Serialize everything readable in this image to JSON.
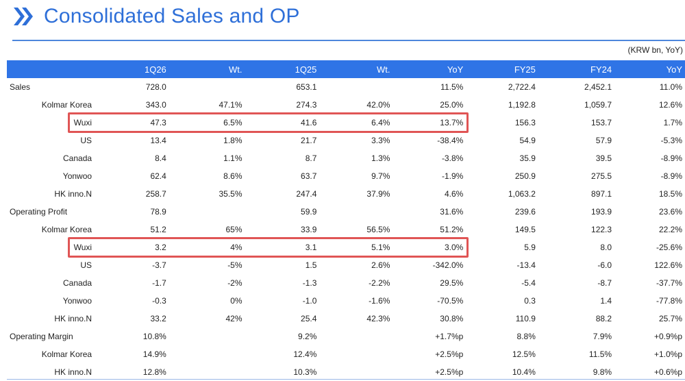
{
  "title": "Consolidated Sales and OP",
  "unit_note": "(KRW bn, YoY)",
  "columns": [
    "",
    "1Q26",
    "Wt.",
    "1Q25",
    "Wt.",
    "YoY",
    "FY25",
    "FY24",
    "YoY"
  ],
  "colors": {
    "accent": "#2e6fd8",
    "header_bg": "#2f74e6",
    "section_bg": "#dde4ee",
    "highlight": "#e05555"
  },
  "rows": [
    {
      "label": "Sales",
      "type": "section",
      "cells": [
        "728.0",
        "",
        "653.1",
        "",
        "11.5%",
        "2,722.4",
        "2,452.1",
        "11.0%"
      ]
    },
    {
      "label": "Kolmar Korea",
      "type": "sub",
      "cells": [
        "343.0",
        "47.1%",
        "274.3",
        "42.0%",
        "25.0%",
        "1,192.8",
        "1,059.7",
        "12.6%"
      ]
    },
    {
      "label": "Wuxi",
      "type": "sub",
      "highlighted": true,
      "cells": [
        "47.3",
        "6.5%",
        "41.6",
        "6.4%",
        "13.7%",
        "156.3",
        "153.7",
        "1.7%"
      ]
    },
    {
      "label": "US",
      "type": "sub",
      "cells": [
        "13.4",
        "1.8%",
        "21.7",
        "3.3%",
        "-38.4%",
        "54.9",
        "57.9",
        "-5.3%"
      ]
    },
    {
      "label": "Canada",
      "type": "sub",
      "cells": [
        "8.4",
        "1.1%",
        "8.7",
        "1.3%",
        "-3.8%",
        "35.9",
        "39.5",
        "-8.9%"
      ]
    },
    {
      "label": "Yonwoo",
      "type": "sub",
      "cells": [
        "62.4",
        "8.6%",
        "63.7",
        "9.7%",
        "-1.9%",
        "250.9",
        "275.5",
        "-8.9%"
      ]
    },
    {
      "label": "HK inno.N",
      "type": "sub",
      "cells": [
        "258.7",
        "35.5%",
        "247.4",
        "37.9%",
        "4.6%",
        "1,063.2",
        "897.1",
        "18.5%"
      ]
    },
    {
      "label": "Operating Profit",
      "type": "section",
      "cells": [
        "78.9",
        "",
        "59.9",
        "",
        "31.6%",
        "239.6",
        "193.9",
        "23.6%"
      ]
    },
    {
      "label": "Kolmar Korea",
      "type": "sub",
      "cells": [
        "51.2",
        "65%",
        "33.9",
        "56.5%",
        "51.2%",
        "149.5",
        "122.3",
        "22.2%"
      ]
    },
    {
      "label": "Wuxi",
      "type": "sub",
      "highlighted": true,
      "cells": [
        "3.2",
        "4%",
        "3.1",
        "5.1%",
        "3.0%",
        "5.9",
        "8.0",
        "-25.6%"
      ]
    },
    {
      "label": "US",
      "type": "sub",
      "cells": [
        "-3.7",
        "-5%",
        "1.5",
        "2.6%",
        "-342.0%",
        "-13.4",
        "-6.0",
        "122.6%"
      ]
    },
    {
      "label": "Canada",
      "type": "sub",
      "cells": [
        "-1.7",
        "-2%",
        "-1.3",
        "-2.2%",
        "29.5%",
        "-5.4",
        "-8.7",
        "-37.7%"
      ]
    },
    {
      "label": "Yonwoo",
      "type": "sub",
      "cells": [
        "-0.3",
        "0%",
        "-1.0",
        "-1.6%",
        "-70.5%",
        "0.3",
        "1.4",
        "-77.8%"
      ]
    },
    {
      "label": "HK inno.N",
      "type": "sub",
      "cells": [
        "33.2",
        "42%",
        "25.4",
        "42.3%",
        "30.8%",
        "110.9",
        "88.2",
        "25.7%"
      ]
    },
    {
      "label": "Operating Margin",
      "type": "section",
      "cells": [
        "10.8%",
        "",
        "9.2%",
        "",
        "+1.7%p",
        "8.8%",
        "7.9%",
        "+0.9%p"
      ]
    },
    {
      "label": "Kolmar Korea",
      "type": "sub",
      "cells": [
        "14.9%",
        "",
        "12.4%",
        "",
        "+2.5%p",
        "12.5%",
        "11.5%",
        "+1.0%p"
      ]
    },
    {
      "label": "HK inno.N",
      "type": "sub",
      "cells": [
        "12.8%",
        "",
        "10.3%",
        "",
        "+2.5%p",
        "10.4%",
        "9.8%",
        "+0.6%p"
      ]
    }
  ]
}
